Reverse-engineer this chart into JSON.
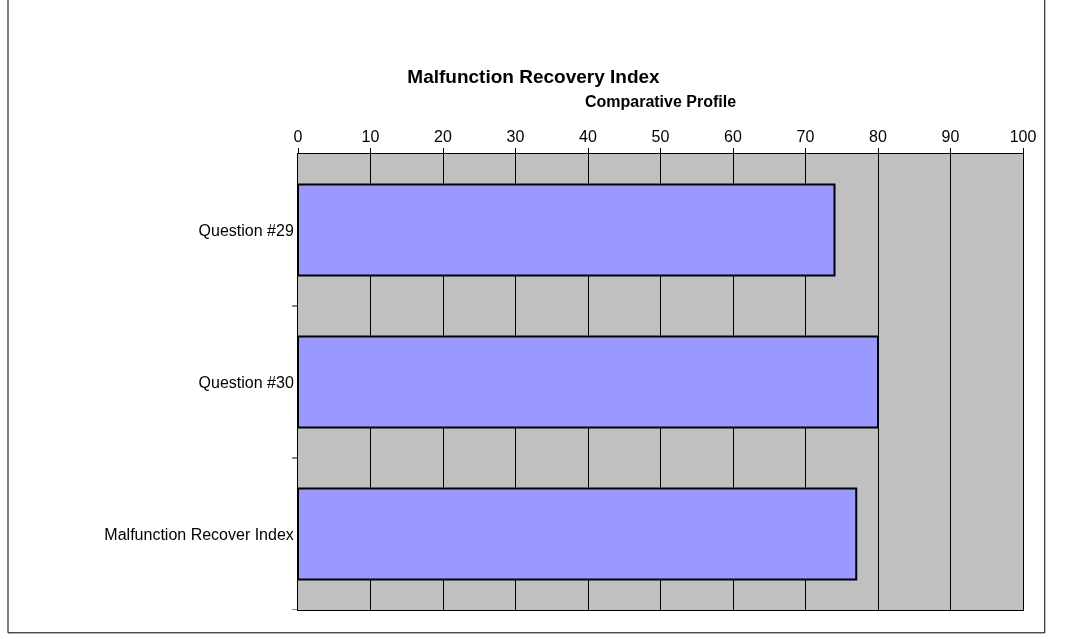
{
  "chart_data": {
    "type": "bar",
    "orientation": "horizontal",
    "title": "Malfunction Recovery Index",
    "xlabel": "Comparative Profile",
    "categories": [
      "Question #29",
      "Question #30",
      "Malfunction Recover Index"
    ],
    "values": [
      74,
      80,
      77
    ],
    "color": "#9999ff",
    "xlim": [
      0,
      100
    ],
    "xticks": [
      0,
      10,
      20,
      30,
      40,
      50,
      60,
      70,
      80,
      90,
      100
    ],
    "grid": "x",
    "legend": false
  }
}
